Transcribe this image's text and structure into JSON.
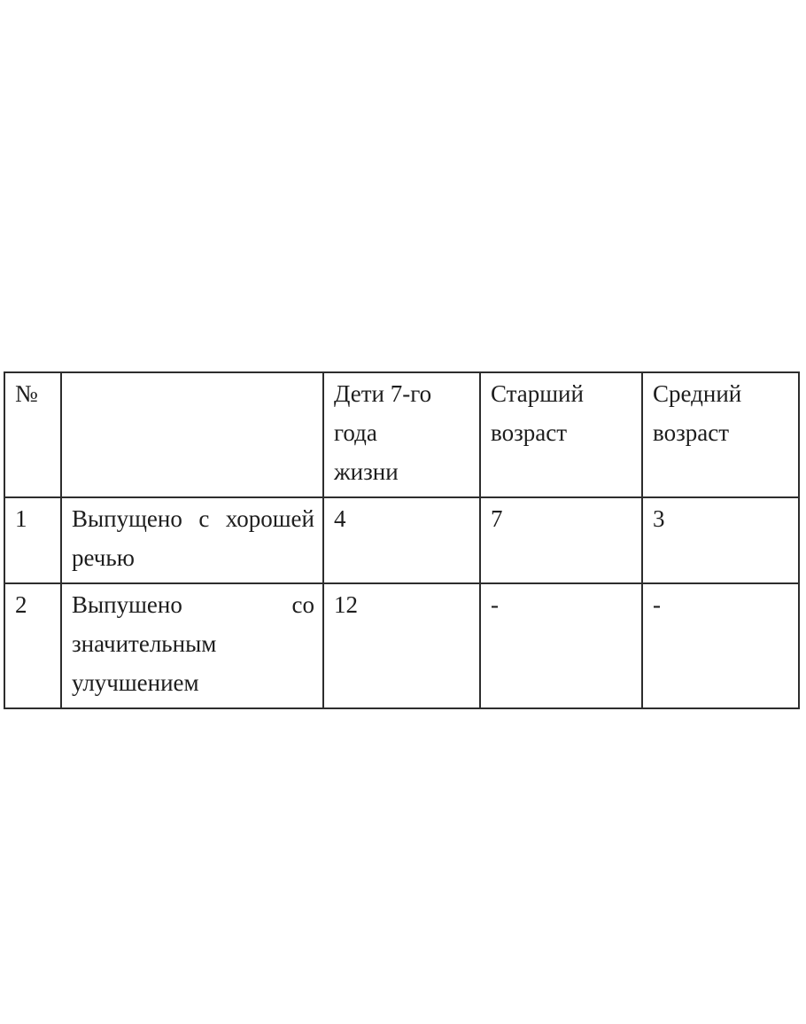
{
  "page": {
    "background_color": "#ffffff",
    "text_color": "#1d1d1d",
    "table_border_color": "#2d2d2d"
  },
  "table": {
    "columns": [
      {
        "key": "num",
        "name": "number",
        "header_lines": [
          "№"
        ]
      },
      {
        "key": "category",
        "name": "category",
        "header_lines": [
          ""
        ]
      },
      {
        "key": "year7",
        "name": "children-7th-year",
        "header_lines": [
          "Дети 7-го года",
          "жизни"
        ]
      },
      {
        "key": "senior",
        "name": "senior-age",
        "header_lines": [
          "Старший",
          "возраст"
        ]
      },
      {
        "key": "middle",
        "name": "middle-age",
        "header_lines": [
          "Средний",
          "возраст"
        ]
      }
    ],
    "rows": [
      {
        "num": "1",
        "category": "Выпущено с хорошей речью",
        "year7": "4",
        "senior": "7",
        "middle": "3"
      },
      {
        "num": "2",
        "category": "Выпушено со значительным улучшением",
        "year7": "12",
        "senior": "-",
        "middle": "-"
      }
    ]
  }
}
